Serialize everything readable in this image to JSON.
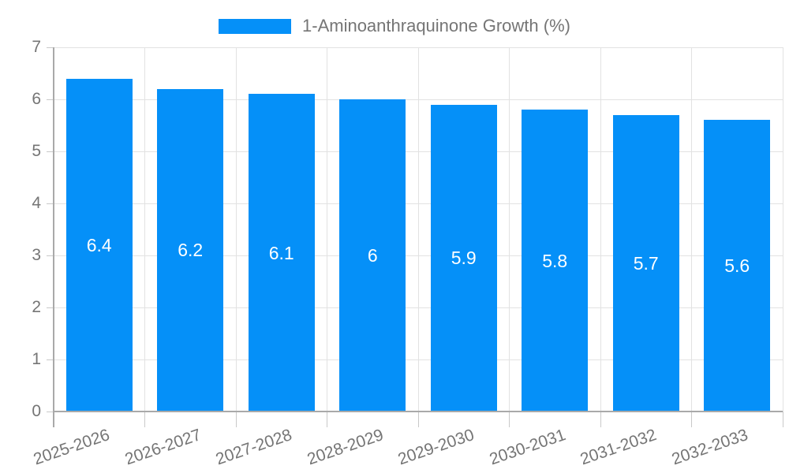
{
  "chart_data": {
    "type": "bar",
    "title": "",
    "legend": "1-Aminoanthraquinone Growth (%)",
    "legend_position": "top",
    "categories": [
      "2025-2026",
      "2026-2027",
      "2027-2028",
      "2028-2029",
      "2029-2030",
      "2030-2031",
      "2031-2032",
      "2032-2033"
    ],
    "values": [
      6.4,
      6.2,
      6.1,
      6,
      5.9,
      5.8,
      5.7,
      5.6
    ],
    "value_labels": [
      "6.4",
      "6.2",
      "6.1",
      "6",
      "5.9",
      "5.8",
      "5.7",
      "5.6"
    ],
    "xlabel": "",
    "ylabel": "",
    "ylim": [
      0,
      7
    ],
    "yticks": [
      0,
      1,
      2,
      3,
      4,
      5,
      6,
      7
    ],
    "grid": true,
    "x_label_rotation_deg": -19,
    "colors": {
      "bar": "#0590f8",
      "bar_label_text": "#ffffff",
      "gridline": "#e2e2e2",
      "tick_mark": "#c9c9c9",
      "axis": "#a9a9a9",
      "tick_text": "#757575",
      "background": "#ffffff"
    }
  }
}
